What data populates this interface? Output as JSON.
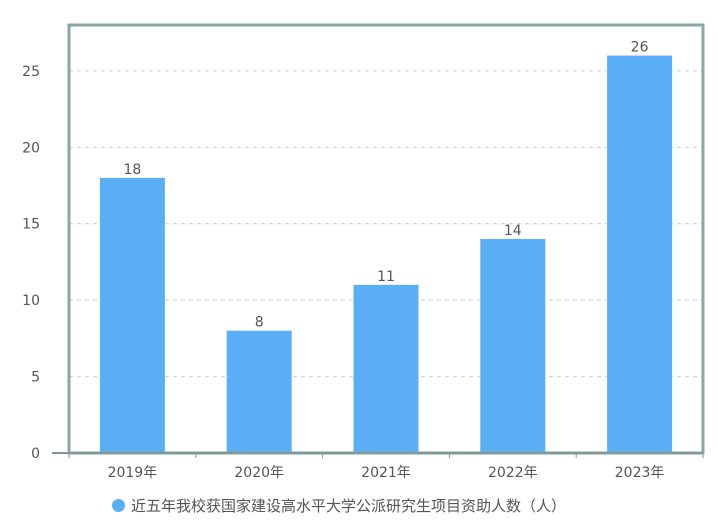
{
  "chart_data": {
    "type": "bar",
    "categories": [
      "2019年",
      "2020年",
      "2021年",
      "2022年",
      "2023年"
    ],
    "series": [
      {
        "name": "近五年我校获国家建设高水平大学公派研究生项目资助人数（人）",
        "values": [
          18,
          8,
          11,
          14,
          26
        ]
      }
    ],
    "ylim": [
      0,
      28
    ],
    "yticks": [
      0,
      5,
      10,
      15,
      20,
      25
    ],
    "grid": true,
    "legend_position": "bottom-center",
    "colors": {
      "bar": "#5aaef5",
      "frame": "#8aa6a6",
      "axis": "#7a9a9a"
    }
  }
}
